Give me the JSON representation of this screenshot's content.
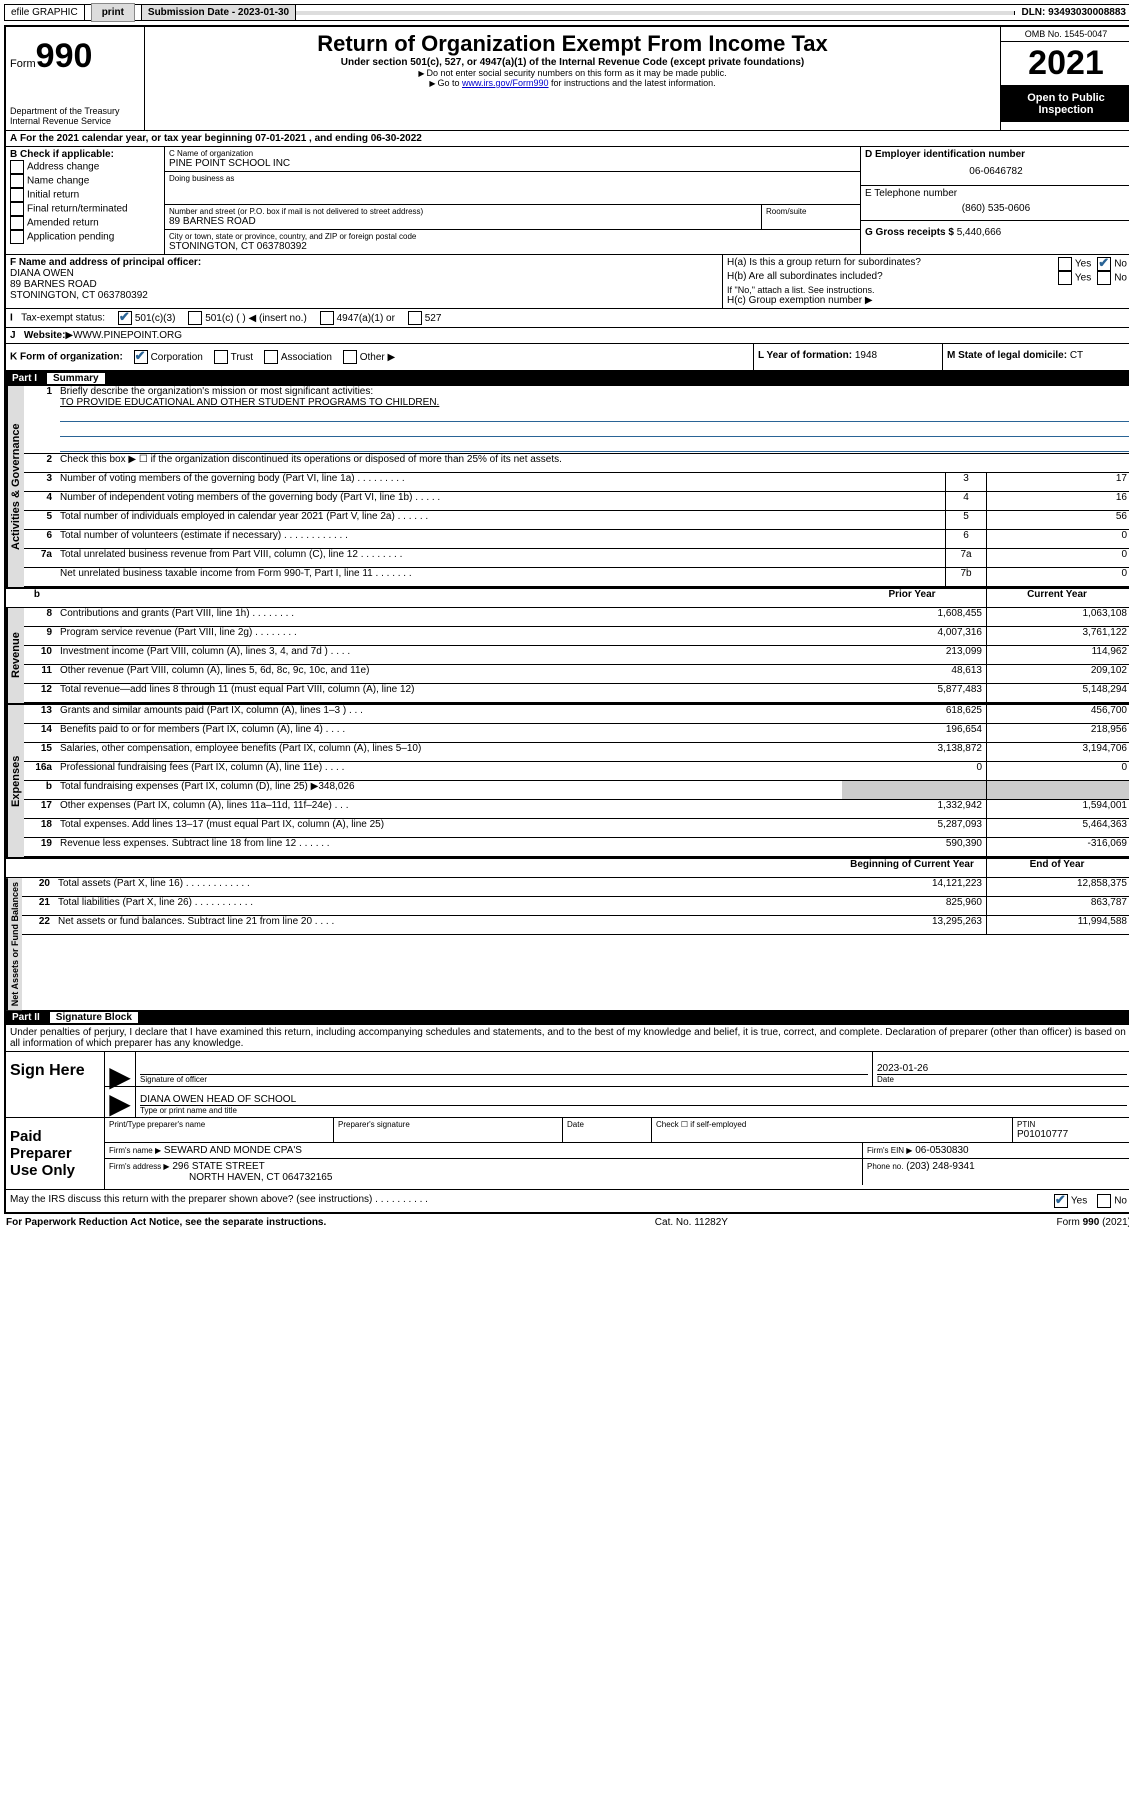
{
  "topbar": {
    "efile_label": "efile GRAPHIC",
    "print_btn": "print",
    "submission_label": "Submission Date - 2023-01-30",
    "dln_label": "DLN: 93493030008883"
  },
  "header": {
    "form_prefix": "Form",
    "form_number": "990",
    "dept": "Department of the Treasury",
    "irs": "Internal Revenue Service",
    "title": "Return of Organization Exempt From Income Tax",
    "subtitle": "Under section 501(c), 527, or 4947(a)(1) of the Internal Revenue Code (except private foundations)",
    "note1": "Do not enter social security numbers on this form as it may be made public.",
    "note2_pre": "Go to ",
    "note2_link": "www.irs.gov/Form990",
    "note2_post": " for instructions and the latest information.",
    "omb": "OMB No. 1545-0047",
    "year": "2021",
    "open": "Open to Public Inspection"
  },
  "lineA": {
    "text_pre": "For the 2021 calendar year, or tax year beginning ",
    "begin": "07-01-2021",
    "mid": " , and ending ",
    "end": "06-30-2022"
  },
  "boxB": {
    "label": "B Check if applicable:",
    "items": [
      "Address change",
      "Name change",
      "Initial return",
      "Final return/terminated",
      "Amended return",
      "Application pending"
    ]
  },
  "boxC": {
    "label": "C Name of organization",
    "name": "PINE POINT SCHOOL INC",
    "dba_label": "Doing business as",
    "street_label": "Number and street (or P.O. box if mail is not delivered to street address)",
    "room_label": "Room/suite",
    "street": "89 BARNES ROAD",
    "city_label": "City or town, state or province, country, and ZIP or foreign postal code",
    "city": "STONINGTON, CT  063780392"
  },
  "boxD": {
    "label": "D Employer identification number",
    "value": "06-0646782"
  },
  "boxE": {
    "label": "E Telephone number",
    "value": "(860) 535-0606"
  },
  "boxG": {
    "label": "G Gross receipts $",
    "value": "5,440,666"
  },
  "boxF": {
    "label": "F Name and address of principal officer:",
    "name": "DIANA OWEN",
    "street": "89 BARNES ROAD",
    "city": "STONINGTON, CT  063780392"
  },
  "boxH": {
    "ha_label": "H(a)  Is this a group return for subordinates?",
    "hb_label": "H(b)  Are all subordinates included?",
    "hb_note": "If \"No,\" attach a list. See instructions.",
    "hc_label": "H(c)  Group exemption number",
    "yes": "Yes",
    "no": "No"
  },
  "boxI": {
    "label": "Tax-exempt status:",
    "opts": [
      "501(c)(3)",
      "501(c) (   ) ◀ (insert no.)",
      "4947(a)(1) or",
      "527"
    ]
  },
  "boxJ": {
    "label": "Website:",
    "value": "WWW.PINEPOINT.ORG"
  },
  "boxK": {
    "label": "K Form of organization:",
    "opts": [
      "Corporation",
      "Trust",
      "Association",
      "Other"
    ]
  },
  "boxL": {
    "label": "L Year of formation:",
    "value": "1948"
  },
  "boxM": {
    "label": "M State of legal domicile:",
    "value": "CT"
  },
  "part1": {
    "label": "Part I",
    "title": "Summary",
    "side_gov": "Activities & Governance",
    "side_rev": "Revenue",
    "side_exp": "Expenses",
    "side_net": "Net Assets or Fund Balances",
    "l1_label": "Briefly describe the organization's mission or most significant activities:",
    "l1_text": "TO PROVIDE EDUCATIONAL AND OTHER STUDENT PROGRAMS TO CHILDREN.",
    "l2_label": "Check this box ▶ ☐ if the organization discontinued its operations or disposed of more than 25% of its net assets.",
    "gov_rows": [
      {
        "n": "3",
        "desc": "Number of voting members of the governing body (Part VI, line 1a)   .    .    .    .    .    .    .    .    .",
        "box": "3",
        "val": "17"
      },
      {
        "n": "4",
        "desc": "Number of independent voting members of the governing body (Part VI, line 1b)   .    .    .    .    .",
        "box": "4",
        "val": "16"
      },
      {
        "n": "5",
        "desc": "Total number of individuals employed in calendar year 2021 (Part V, line 2a)   .    .    .    .    .    .",
        "box": "5",
        "val": "56"
      },
      {
        "n": "6",
        "desc": "Total number of volunteers (estimate if necessary)   .    .    .    .    .    .    .    .    .    .    .    .",
        "box": "6",
        "val": "0"
      },
      {
        "n": "7a",
        "desc": "Total unrelated business revenue from Part VIII, column (C), line 12   .    .    .    .    .    .    .    .",
        "box": "7a",
        "val": "0"
      },
      {
        "n": "",
        "desc": "Net unrelated business taxable income from Form 990-T, Part I, line 11   .    .    .    .    .    .    .",
        "box": "7b",
        "val": "0"
      }
    ],
    "col_prior": "Prior Year",
    "col_curr": "Current Year",
    "col_boy": "Beginning of Current Year",
    "col_eoy": "End of Year",
    "rev_rows": [
      {
        "n": "8",
        "desc": "Contributions and grants (Part VIII, line 1h)   .    .    .    .    .    .    .    .",
        "p": "1,608,455",
        "c": "1,063,108"
      },
      {
        "n": "9",
        "desc": "Program service revenue (Part VIII, line 2g)   .    .    .    .    .    .    .    .",
        "p": "4,007,316",
        "c": "3,761,122"
      },
      {
        "n": "10",
        "desc": "Investment income (Part VIII, column (A), lines 3, 4, and 7d )   .    .    .    .",
        "p": "213,099",
        "c": "114,962"
      },
      {
        "n": "11",
        "desc": "Other revenue (Part VIII, column (A), lines 5, 6d, 8c, 9c, 10c, and 11e)",
        "p": "48,613",
        "c": "209,102"
      },
      {
        "n": "12",
        "desc": "Total revenue—add lines 8 through 11 (must equal Part VIII, column (A), line 12)",
        "p": "5,877,483",
        "c": "5,148,294"
      }
    ],
    "exp_rows": [
      {
        "n": "13",
        "desc": "Grants and similar amounts paid (Part IX, column (A), lines 1–3 )   .    .    .",
        "p": "618,625",
        "c": "456,700"
      },
      {
        "n": "14",
        "desc": "Benefits paid to or for members (Part IX, column (A), line 4)   .   .   .   .",
        "p": "196,654",
        "c": "218,956"
      },
      {
        "n": "15",
        "desc": "Salaries, other compensation, employee benefits (Part IX, column (A), lines 5–10)",
        "p": "3,138,872",
        "c": "3,194,706"
      },
      {
        "n": "16a",
        "desc": "Professional fundraising fees (Part IX, column (A), line 11e)   .    .    .    .",
        "p": "0",
        "c": "0"
      },
      {
        "n": "b",
        "desc": "Total fundraising expenses (Part IX, column (D), line 25) ▶348,026",
        "p": "",
        "c": "",
        "shade": true
      },
      {
        "n": "17",
        "desc": "Other expenses (Part IX, column (A), lines 11a–11d, 11f–24e)   .    .    .",
        "p": "1,332,942",
        "c": "1,594,001"
      },
      {
        "n": "18",
        "desc": "Total expenses. Add lines 13–17 (must equal Part IX, column (A), line 25)",
        "p": "5,287,093",
        "c": "5,464,363"
      },
      {
        "n": "19",
        "desc": "Revenue less expenses. Subtract line 18 from line 12   .    .    .    .    .    .",
        "p": "590,390",
        "c": "-316,069"
      }
    ],
    "net_rows": [
      {
        "n": "20",
        "desc": "Total assets (Part X, line 16)   .    .    .    .    .    .    .    .    .    .    .    .",
        "p": "14,121,223",
        "c": "12,858,375"
      },
      {
        "n": "21",
        "desc": "Total liabilities (Part X, line 26)   .    .    .    .    .    .    .    .    .    .    .",
        "p": "825,960",
        "c": "863,787"
      },
      {
        "n": "22",
        "desc": "Net assets or fund balances. Subtract line 21 from line 20   .    .    .    .",
        "p": "13,295,263",
        "c": "11,994,588"
      }
    ]
  },
  "part2": {
    "label": "Part II",
    "title": "Signature Block",
    "penalties": "Under penalties of perjury, I declare that I have examined this return, including accompanying schedules and statements, and to the best of my knowledge and belief, it is true, correct, and complete. Declaration of preparer (other than officer) is based on all information of which preparer has any knowledge.",
    "sign_here": "Sign Here",
    "sig_officer": "Signature of officer",
    "date_label": "Date",
    "sig_date": "2023-01-26",
    "officer_name": "DIANA OWEN  HEAD OF SCHOOL",
    "name_title": "Type or print name and title",
    "paid": "Paid Preparer Use Only",
    "prep_name_lbl": "Print/Type preparer's name",
    "prep_sig_lbl": "Preparer's signature",
    "check_self": "Check ☐ if self-employed",
    "ptin_lbl": "PTIN",
    "ptin": "P01010777",
    "firm_name_lbl": "Firm's name    ▶",
    "firm_name": "SEWARD AND MONDE CPA'S",
    "firm_ein_lbl": "Firm's EIN ▶",
    "firm_ein": "06-0530830",
    "firm_addr_lbl": "Firm's address ▶",
    "firm_addr1": "296 STATE STREET",
    "firm_addr2": "NORTH HAVEN, CT  064732165",
    "firm_phone_lbl": "Phone no.",
    "firm_phone": "(203) 248-9341",
    "may_irs": "May the IRS discuss this return with the preparer shown above? (see instructions)   .    .    .    .    .    .    .    .    .    .",
    "yes": "Yes",
    "no": "No"
  },
  "footer": {
    "left": "For Paperwork Reduction Act Notice, see the separate instructions.",
    "mid": "Cat. No. 11282Y",
    "right": "Form 990 (2021)"
  }
}
